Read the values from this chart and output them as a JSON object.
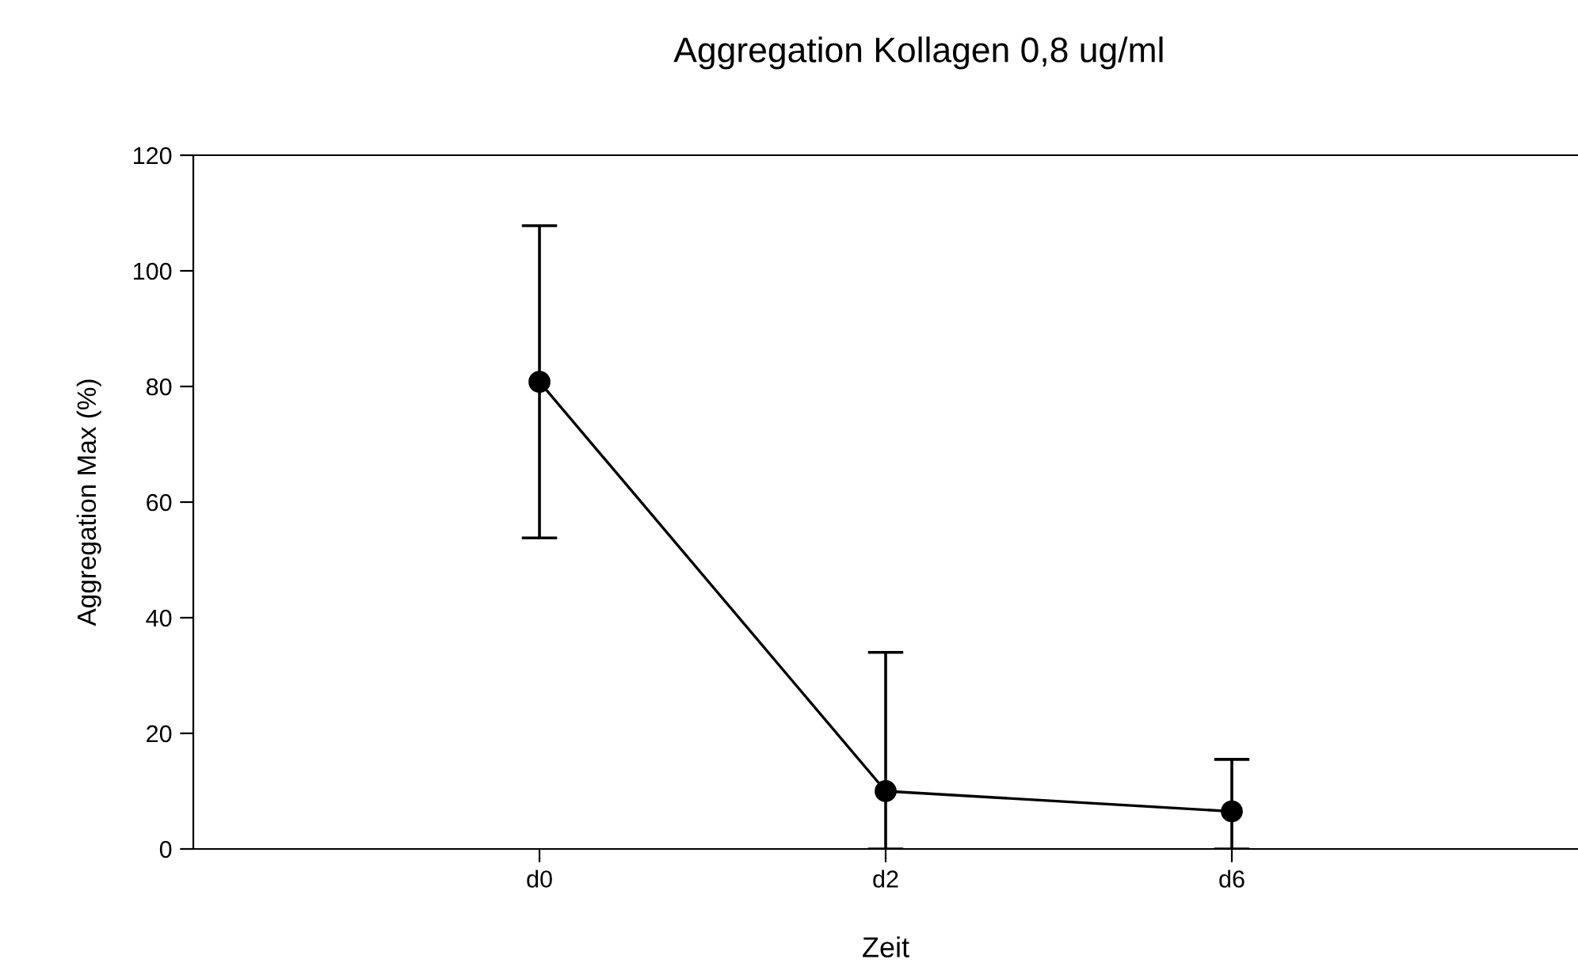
{
  "chart_data": {
    "type": "line",
    "title": "Aggregation Kollagen 0,8 ug/ml",
    "xlabel": "Zeit",
    "ylabel": "Aggregation Max (%)",
    "categories": [
      "d0",
      "d2",
      "d6"
    ],
    "values": [
      80.8,
      10,
      6.5
    ],
    "errors": [
      27,
      [
        0,
        34
      ],
      [
        0,
        15.5
      ]
    ],
    "color": "#000000",
    "marker": "circle",
    "line_style": "solid",
    "ylim": [
      0,
      120
    ],
    "yticks": [
      0,
      20,
      40,
      60,
      80,
      100,
      120
    ],
    "grid": false,
    "legend": false
  }
}
